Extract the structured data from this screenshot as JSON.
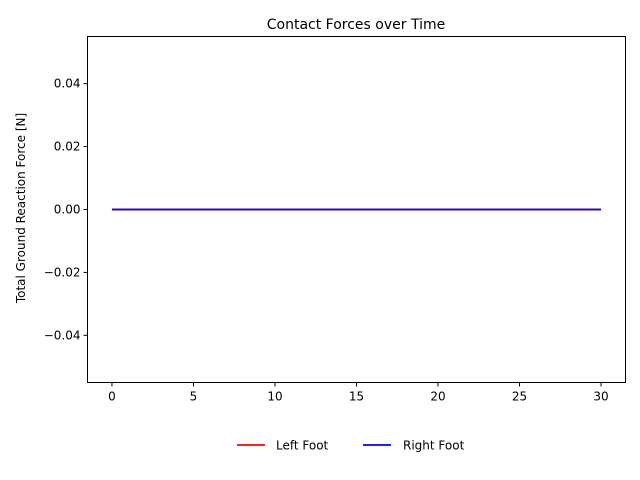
{
  "chart_data": {
    "type": "line",
    "title": "Contact Forces over Time",
    "xlabel": "",
    "ylabel": "Total Ground Reaction Force [N]",
    "xlim": [
      -1.5,
      31.5
    ],
    "ylim": [
      -0.055,
      0.055
    ],
    "xticks": [
      0,
      5,
      10,
      15,
      20,
      25,
      30
    ],
    "xtick_labels": [
      "0",
      "5",
      "10",
      "15",
      "20",
      "25",
      "30"
    ],
    "yticks": [
      0.04,
      0.02,
      0.0,
      -0.02,
      -0.04
    ],
    "ytick_labels": [
      "0.04",
      "0.02",
      "0.00",
      "−0.02",
      "−0.04"
    ],
    "grid": false,
    "legend_position": "bottom-center",
    "series": [
      {
        "name": "Left Foot",
        "color": "#ff0000",
        "x": [
          0,
          30
        ],
        "y": [
          0,
          0
        ]
      },
      {
        "name": "Right Foot",
        "color": "#0000ff",
        "x": [
          0,
          30
        ],
        "y": [
          0,
          0
        ]
      }
    ]
  }
}
